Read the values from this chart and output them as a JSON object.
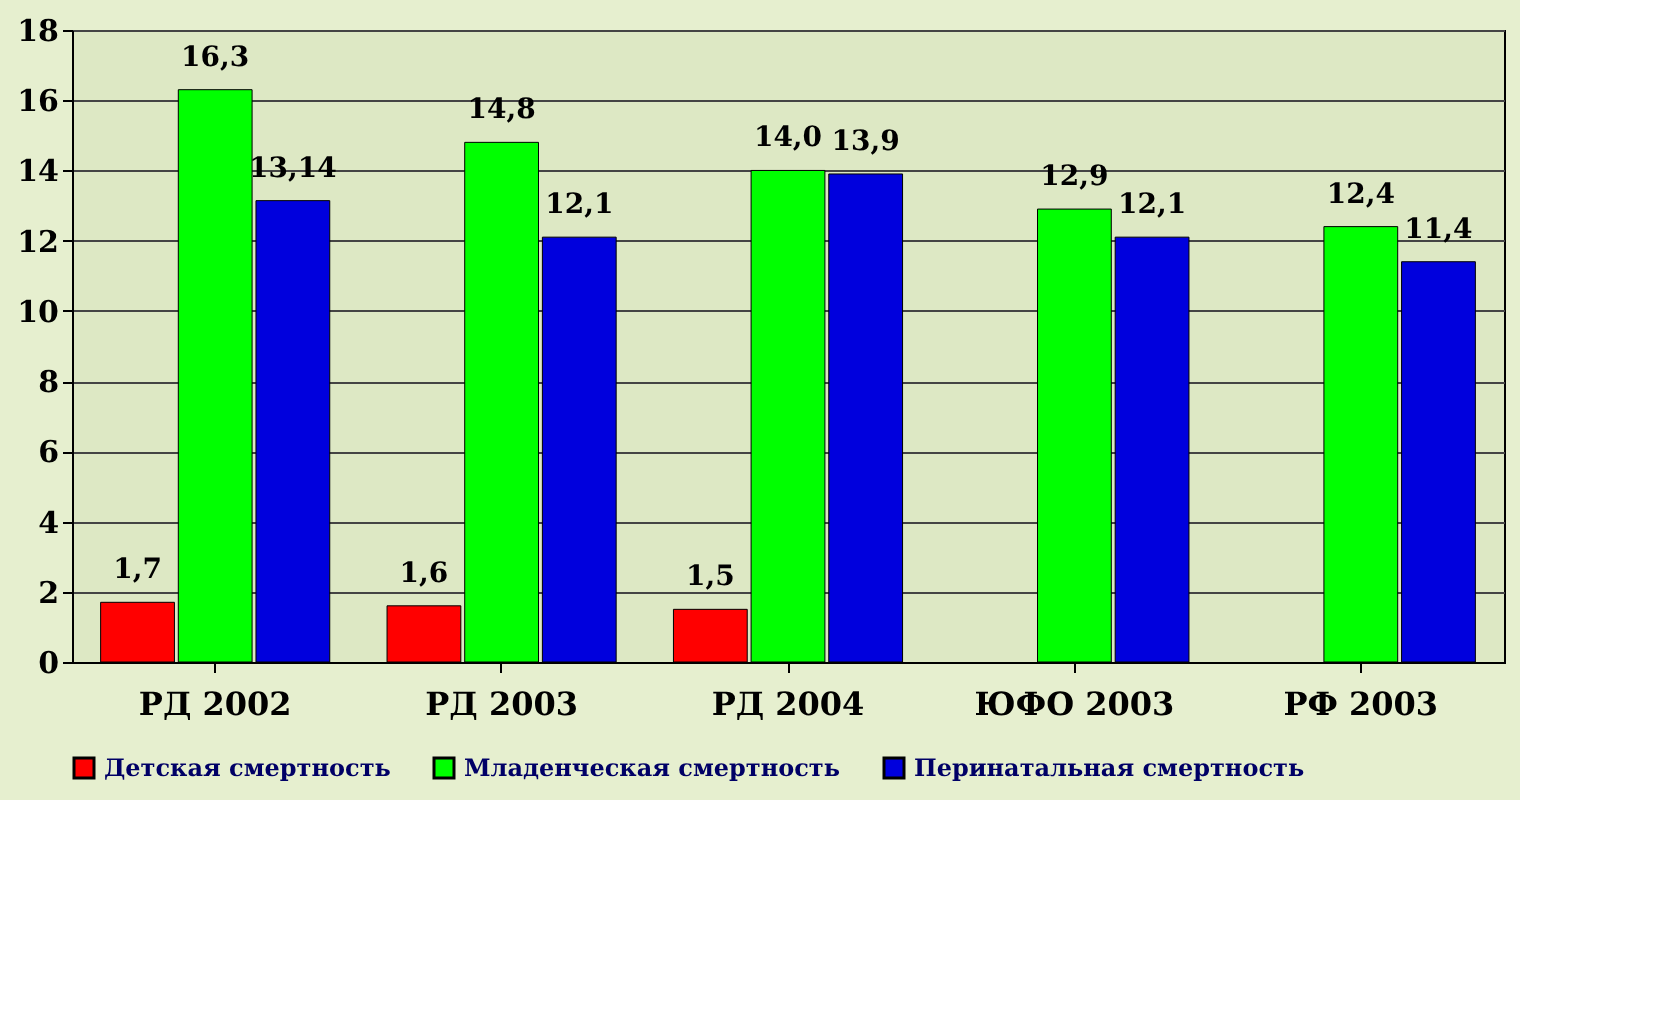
{
  "chart_data": {
    "type": "bar",
    "categories": [
      "РД 2002",
      "РД 2003",
      "РД 2004",
      "ЮФО 2003",
      "РФ 2003"
    ],
    "series": [
      {
        "name": "Детская смертность",
        "color": "#ff0000",
        "values": [
          1.7,
          1.6,
          1.5,
          null,
          null
        ],
        "value_labels": [
          "1,7",
          "1,6",
          "1,5",
          null,
          null
        ]
      },
      {
        "name": "Младенческая смертность",
        "color": "#00ff00",
        "values": [
          16.3,
          14.8,
          14.0,
          12.9,
          12.4
        ],
        "value_labels": [
          "16,3",
          "14,8",
          "14,0",
          "12,9",
          "12,4"
        ]
      },
      {
        "name": "Перинатальная смертность",
        "color": "#0000dd",
        "values": [
          13.14,
          12.1,
          13.9,
          12.1,
          11.4
        ],
        "value_labels": [
          "13,14",
          "12,1",
          "13,9",
          "12,1",
          "11,4"
        ]
      }
    ],
    "ylim": [
      0,
      18
    ],
    "yticks": [
      0,
      2,
      4,
      6,
      8,
      10,
      12,
      14,
      16,
      18
    ],
    "grid": "y",
    "legend": "bottom"
  }
}
